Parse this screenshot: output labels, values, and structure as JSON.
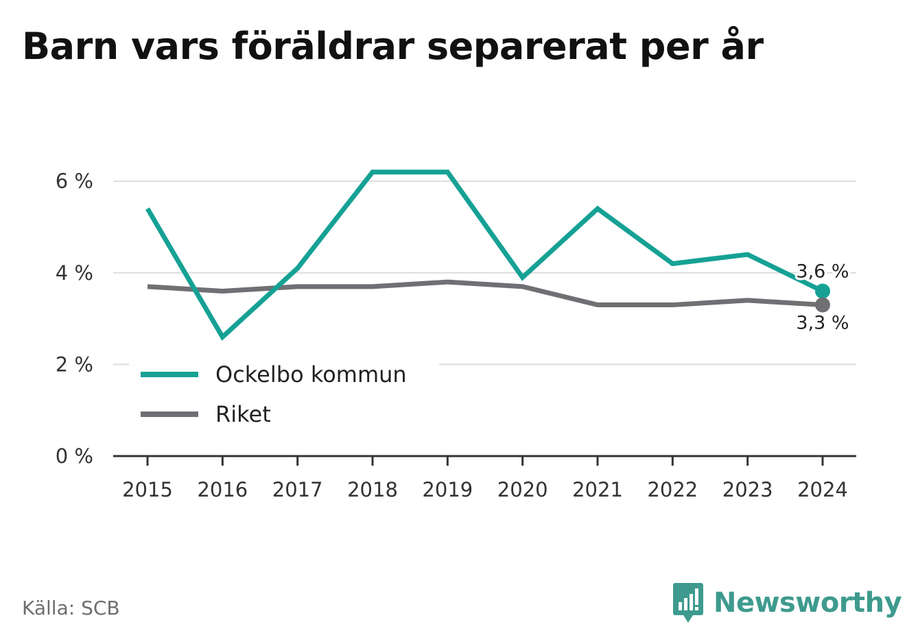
{
  "chart_data": {
    "type": "line",
    "title": "Barn vars föräldrar separerat per år",
    "xlabel": "",
    "ylabel": "",
    "x": [
      "2015",
      "2016",
      "2017",
      "2018",
      "2019",
      "2020",
      "2021",
      "2022",
      "2023",
      "2024"
    ],
    "ylim": [
      0,
      6.4
    ],
    "yticks": [
      0,
      2,
      4,
      6
    ],
    "ytick_labels": [
      "0 %",
      "2 %",
      "4 %",
      "6 %"
    ],
    "grid": true,
    "legend": "bottom-left",
    "series": [
      {
        "name": "Ockelbo kommun",
        "color": "#16a195",
        "values": [
          5.4,
          2.6,
          4.1,
          6.2,
          6.2,
          3.9,
          5.4,
          4.2,
          4.4,
          3.6
        ],
        "end_label": "3,6 %"
      },
      {
        "name": "Riket",
        "color": "#6f6f74",
        "values": [
          3.7,
          3.6,
          3.7,
          3.7,
          3.8,
          3.7,
          3.3,
          3.3,
          3.4,
          3.3
        ],
        "end_label": "3,3 %"
      }
    ]
  },
  "footer": {
    "source": "Källa: SCB",
    "brand": "Newsworthy",
    "brand_color": "#3e9a8e"
  }
}
